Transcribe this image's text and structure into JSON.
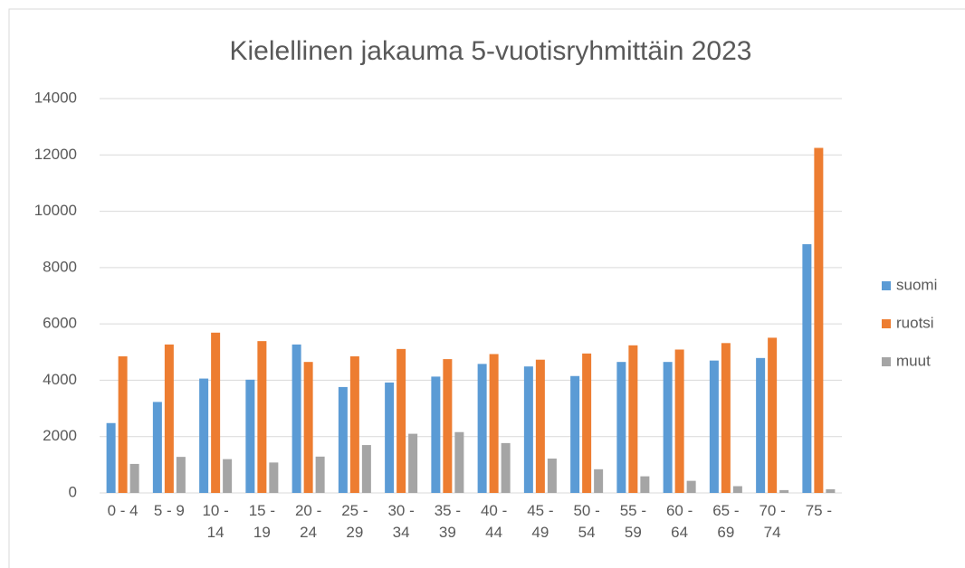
{
  "chart_data": {
    "type": "bar",
    "title": "Kielellinen jakauma 5-vuotisryhmittäin 2023",
    "categories": [
      "0 - 4",
      "5 - 9",
      "10 - 14",
      "15 - 19",
      "20 - 24",
      "25 - 29",
      "30 - 34",
      "35 - 39",
      "40 - 44",
      "45 - 49",
      "50 - 54",
      "55 - 59",
      "60 - 64",
      "65 - 69",
      "70 - 74",
      "75 -"
    ],
    "series": [
      {
        "name": "suomi",
        "color": "#5b9bd5",
        "values": [
          2480,
          3230,
          4060,
          4020,
          5270,
          3760,
          3920,
          4130,
          4580,
          4490,
          4150,
          4650,
          4650,
          4700,
          4790,
          8830
        ]
      },
      {
        "name": "ruotsi",
        "color": "#ed7d31",
        "values": [
          4850,
          5270,
          5690,
          5390,
          4650,
          4850,
          5110,
          4750,
          4930,
          4730,
          4950,
          5240,
          5090,
          5320,
          5510,
          12250
        ]
      },
      {
        "name": "muut",
        "color": "#a5a5a5",
        "values": [
          1030,
          1280,
          1200,
          1080,
          1290,
          1700,
          2100,
          2160,
          1770,
          1220,
          840,
          590,
          430,
          240,
          100,
          130
        ]
      }
    ],
    "ylim": [
      0,
      14000
    ],
    "yticks": [
      0,
      2000,
      4000,
      6000,
      8000,
      10000,
      12000,
      14000
    ],
    "grid": true,
    "legend": "right"
  }
}
